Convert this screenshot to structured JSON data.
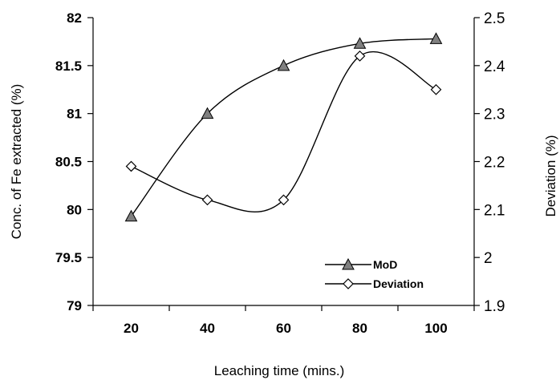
{
  "chart_data": {
    "type": "line",
    "title": "",
    "xlabel": "Leaching time (mins.)",
    "ylabel": "Conc. of Fe extracted (%)",
    "y2label": "Deviation (%)",
    "x": [
      20,
      40,
      60,
      80,
      100
    ],
    "xlim": [
      10,
      110
    ],
    "ylim": [
      79,
      82
    ],
    "y2lim": [
      1.9,
      2.5
    ],
    "x_ticks": [
      20,
      40,
      60,
      80,
      100
    ],
    "y_ticks": [
      79,
      79.5,
      80,
      80.5,
      81,
      81.5,
      82
    ],
    "y_tick_labels": [
      "79",
      "79.5",
      "80",
      "80.5",
      "81",
      "81.5",
      "82"
    ],
    "y2_ticks": [
      1.9,
      2.0,
      2.1,
      2.2,
      2.3,
      2.4,
      2.5
    ],
    "y2_tick_labels": [
      "1.9",
      "2",
      "2.1",
      "2.2",
      "2.3",
      "2.4",
      "2.5"
    ],
    "series": [
      {
        "name": "MoD",
        "axis": "left",
        "marker": "triangle",
        "marker_color": "#808080",
        "values": [
          79.93,
          81.0,
          81.5,
          81.73,
          81.78
        ]
      },
      {
        "name": "Deviation",
        "axis": "right",
        "marker": "diamond",
        "marker_color": "#ffffff",
        "values": [
          2.19,
          2.12,
          2.12,
          2.42,
          2.35
        ]
      }
    ],
    "legend_position": "bottom-right",
    "grid": false
  }
}
